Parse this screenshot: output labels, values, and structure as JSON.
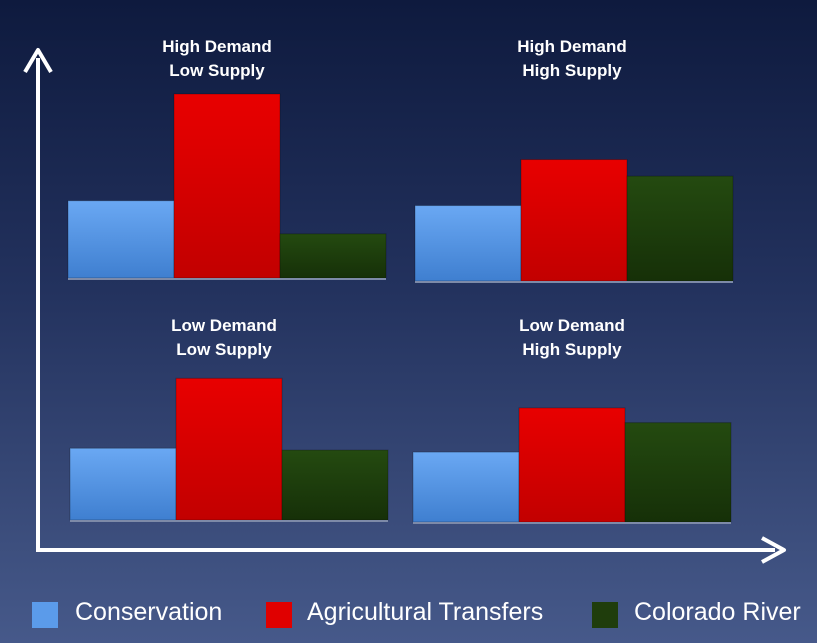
{
  "chart_data": [
    {
      "type": "bar",
      "title_lines": [
        "High Demand",
        "Low Supply"
      ],
      "categories": [
        "Conservation",
        "Agricultural Transfers",
        "Colorado River"
      ],
      "values": [
        4.2,
        10,
        2.4
      ],
      "ylim": [
        0,
        10
      ]
    },
    {
      "type": "bar",
      "title_lines": [
        "High Demand",
        "High Supply"
      ],
      "categories": [
        "Conservation",
        "Agricultural Transfers",
        "Colorado River"
      ],
      "values": [
        4.1,
        6.6,
        5.7
      ],
      "ylim": [
        0,
        10
      ]
    },
    {
      "type": "bar",
      "title_lines": [
        "Low Demand",
        "Low Supply"
      ],
      "categories": [
        "Conservation",
        "Agricultural Transfers",
        "Colorado River"
      ],
      "values": [
        3.9,
        7.7,
        3.8
      ],
      "ylim": [
        0,
        10
      ]
    },
    {
      "type": "bar",
      "title_lines": [
        "Low Demand",
        "High Supply"
      ],
      "categories": [
        "Conservation",
        "Agricultural Transfers",
        "Colorado River"
      ],
      "values": [
        3.8,
        6.2,
        5.4
      ],
      "ylim": [
        0,
        10
      ]
    }
  ],
  "legend": {
    "placement": "bottom",
    "items": [
      {
        "label": "Conservation",
        "color": "#5b9bea"
      },
      {
        "label": "Agricultural Transfers",
        "color": "#e00000"
      },
      {
        "label": "Colorado River",
        "color": "#1f3d0c"
      }
    ]
  },
  "axes": {
    "color": "#ffffff",
    "arrows": true,
    "grid": false
  },
  "background": {
    "top_color": "#0e1a3e",
    "bottom_color": "#46598a"
  }
}
